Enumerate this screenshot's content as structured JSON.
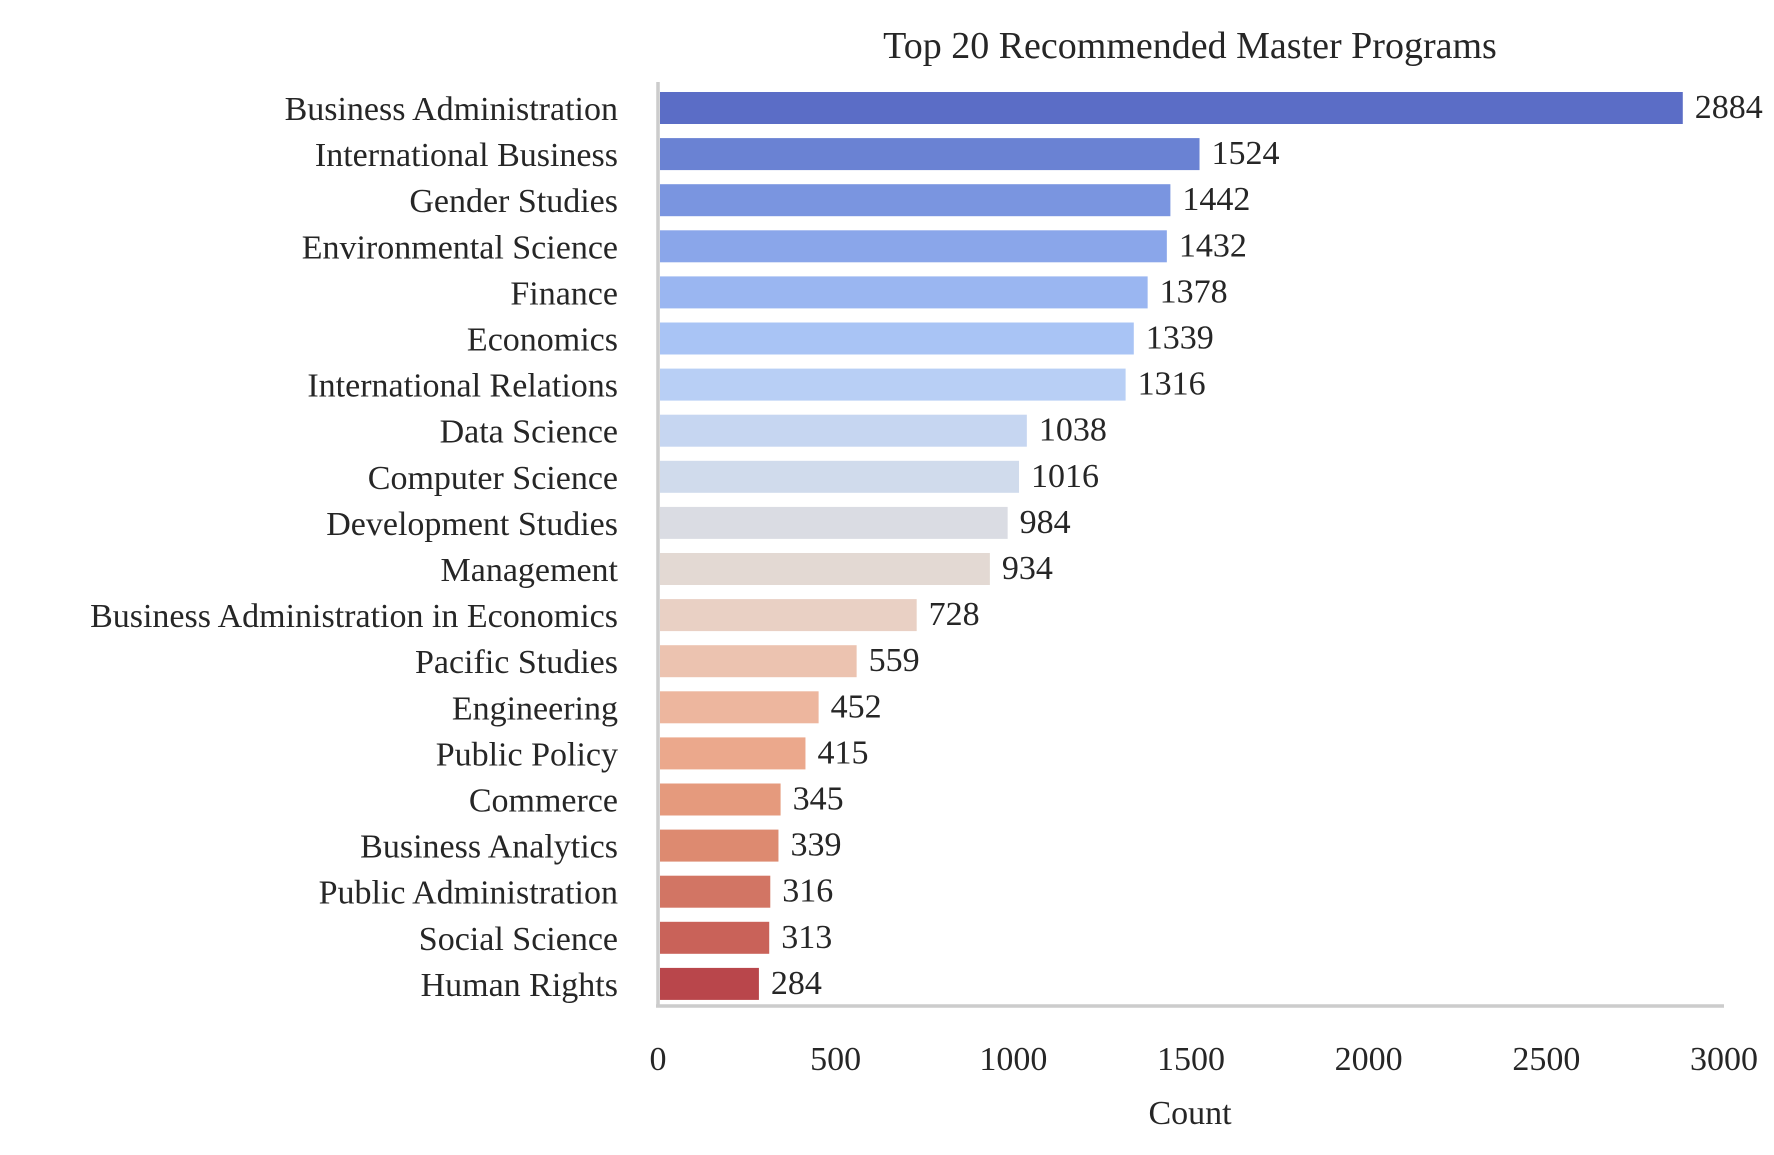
{
  "chart_data": {
    "type": "bar",
    "orientation": "horizontal",
    "title": "Top 20 Recommended Master Programs",
    "xlabel": "Count",
    "ylabel": "",
    "xlim": [
      0,
      3000
    ],
    "xticks": [
      "0",
      "500",
      "1000",
      "1500",
      "2000",
      "2500",
      "3000"
    ],
    "grid": false,
    "categories": [
      "Business Administration",
      "International Business",
      "Gender Studies",
      "Environmental Science",
      "Finance",
      "Economics",
      "International Relations",
      "Data Science",
      "Computer Science",
      "Development Studies",
      "Management",
      "Business Administration in Economics",
      "Pacific Studies",
      "Engineering",
      "Public Policy",
      "Commerce",
      "Business Analytics",
      "Public Administration",
      "Social Science",
      "Human Rights"
    ],
    "values": [
      2884,
      1524,
      1442,
      1432,
      1378,
      1339,
      1316,
      1038,
      1016,
      984,
      934,
      728,
      559,
      452,
      415,
      345,
      339,
      316,
      313,
      284
    ],
    "colors": [
      "#5b6dc6",
      "#6a82d3",
      "#7a95e0",
      "#8aa6ea",
      "#9ab6f1",
      "#a9c4f5",
      "#b8cff5",
      "#c6d6f1",
      "#d0dbec",
      "#dadce3",
      "#e3d9d3",
      "#e9d0c4",
      "#ecc3b0",
      "#edb69e",
      "#eba88c",
      "#e59a7d",
      "#dd8a70",
      "#d27564",
      "#c96259",
      "#b9464b"
    ]
  }
}
